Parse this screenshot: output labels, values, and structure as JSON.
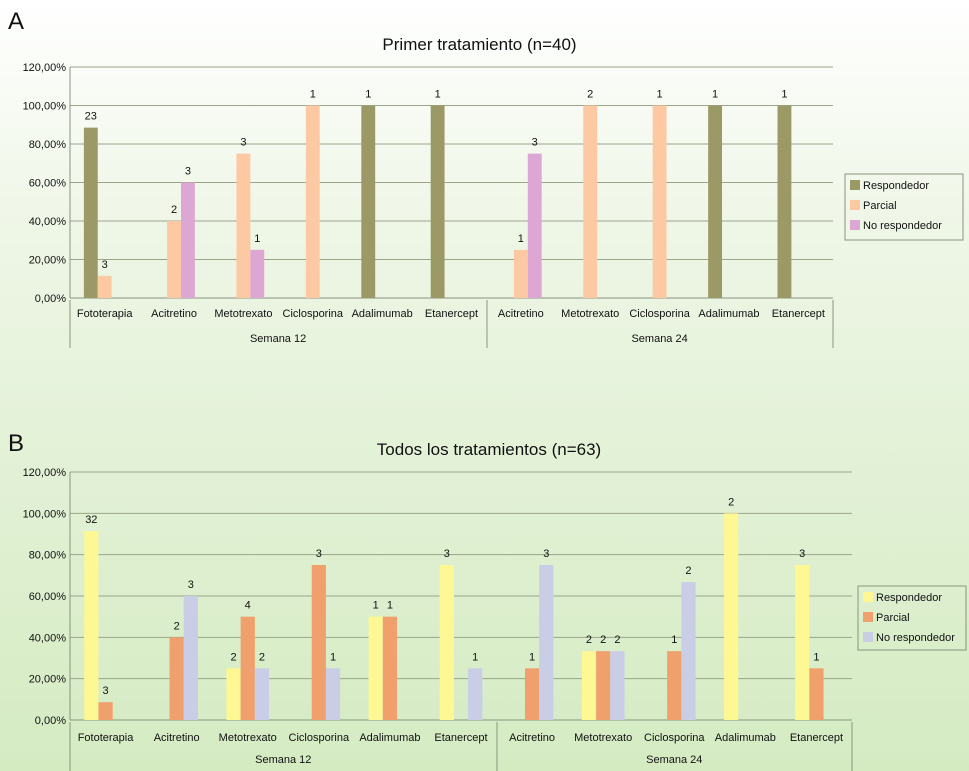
{
  "chart_data": [
    {
      "panel": "A",
      "type": "bar",
      "title": "Primer tratamiento (n=40)",
      "ylim": [
        0,
        120
      ],
      "yticks": [
        "0,00%",
        "20,00%",
        "40,00%",
        "60,00%",
        "80,00%",
        "100,00%",
        "120,00%"
      ],
      "groups": [
        {
          "name": "Semana 12",
          "categories": [
            "Fototerapia",
            "Acitretino",
            "Metotrexato",
            "Ciclosporina",
            "Adalimumab",
            "Etanercept"
          ]
        },
        {
          "name": "Semana 24",
          "categories": [
            "Acitretino",
            "Metotrexato",
            "Ciclosporina",
            "Adalimumab",
            "Etanercept"
          ]
        }
      ],
      "series": [
        {
          "name": "Respondedor",
          "color": "#9b9a67",
          "values": [
            88.5,
            null,
            null,
            null,
            100,
            100,
            null,
            null,
            null,
            100,
            100
          ],
          "labels": [
            "23",
            "",
            "",
            "",
            "1",
            "1",
            "",
            "",
            "",
            "1",
            "1"
          ]
        },
        {
          "name": "Parcial",
          "color": "#fcc9a3",
          "values": [
            11.5,
            40,
            75,
            100,
            null,
            null,
            25,
            100,
            100,
            null,
            null
          ],
          "labels": [
            "3",
            "2",
            "3",
            "1",
            "",
            "",
            "1",
            "2",
            "1",
            "",
            ""
          ]
        },
        {
          "name": "No respondedor",
          "color": "#dca7d3",
          "values": [
            null,
            60,
            25,
            null,
            null,
            null,
            75,
            null,
            null,
            null,
            null
          ],
          "labels": [
            "",
            "3",
            "1",
            "",
            "",
            "",
            "3",
            "",
            "",
            "",
            ""
          ]
        }
      ],
      "legend": "right",
      "grid": true
    },
    {
      "panel": "B",
      "type": "bar",
      "title": "Todos los tratamientos (n=63)",
      "ylim": [
        0,
        120
      ],
      "yticks": [
        "0,00%",
        "20,00%",
        "40,00%",
        "60,00%",
        "80,00%",
        "100,00%",
        "120,00%"
      ],
      "groups": [
        {
          "name": "Semana 12",
          "categories": [
            "Fototerapia",
            "Acitretino",
            "Metotrexato",
            "Ciclosporina",
            "Adalimumab",
            "Etanercept"
          ]
        },
        {
          "name": "Semana 24",
          "categories": [
            "Acitretino",
            "Metotrexato",
            "Ciclosporina",
            "Adalimumab",
            "Etanercept"
          ]
        }
      ],
      "series": [
        {
          "name": "Respondedor",
          "color": "#fdf794",
          "values": [
            91.4,
            null,
            25,
            null,
            50,
            75,
            null,
            33.3,
            null,
            100,
            75
          ],
          "labels": [
            "32",
            "",
            "2",
            "",
            "1",
            "3",
            "",
            "2",
            "",
            "2",
            "3"
          ]
        },
        {
          "name": "Parcial",
          "color": "#f0a06c",
          "values": [
            8.6,
            40,
            50,
            75,
            50,
            null,
            25,
            33.3,
            33.3,
            null,
            25
          ],
          "labels": [
            "3",
            "2",
            "4",
            "3",
            "1",
            "",
            "1",
            "2",
            "1",
            "",
            "1"
          ]
        },
        {
          "name": "No respondedor",
          "color": "#c9cde6",
          "values": [
            null,
            60,
            25,
            25,
            null,
            25,
            75,
            33.3,
            66.7,
            null,
            null
          ],
          "labels": [
            "",
            "3",
            "2",
            "1",
            "",
            "1",
            "3",
            "2",
            "2",
            "",
            ""
          ]
        }
      ],
      "legend": "right",
      "grid": true
    }
  ]
}
